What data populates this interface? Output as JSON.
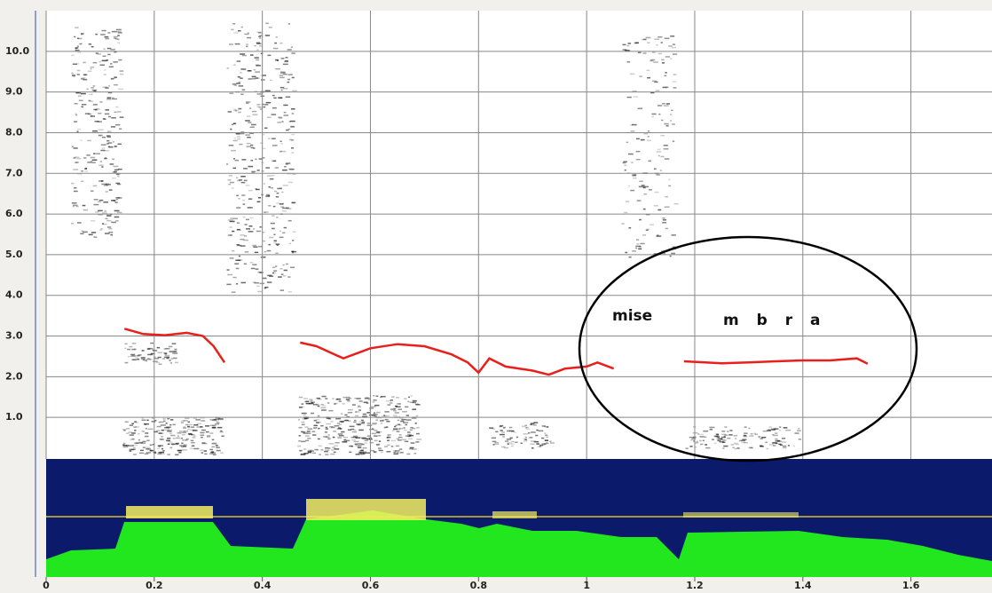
{
  "chart_data": {
    "type": "line",
    "x": [
      0.145,
      0.18,
      0.22,
      0.26,
      0.29,
      0.31,
      0.33,
      null,
      0.47,
      0.5,
      0.55,
      0.6,
      0.65,
      0.7,
      0.75,
      0.78,
      0.8,
      0.82,
      0.85,
      0.9,
      0.93,
      0.96,
      1.0,
      1.02,
      1.05,
      null,
      1.18,
      1.25,
      1.3,
      1.35,
      1.4,
      1.45,
      1.5,
      1.52
    ],
    "series": [
      {
        "color": "#e8201c",
        "values": [
          3.18,
          3.05,
          3.02,
          3.08,
          3.0,
          2.75,
          2.35,
          null,
          2.84,
          2.75,
          2.45,
          2.7,
          2.8,
          2.75,
          2.55,
          2.35,
          2.1,
          2.45,
          2.25,
          2.15,
          2.05,
          2.2,
          2.25,
          2.35,
          2.2,
          null,
          2.38,
          2.33,
          2.35,
          2.38,
          2.4,
          2.4,
          2.45,
          2.32
        ]
      }
    ],
    "xlim": [
      0,
      1.75
    ],
    "xticks": [
      0,
      0.2,
      0.4,
      0.6,
      0.8,
      1,
      1.2,
      1.4,
      1.6
    ],
    "ylim": [
      0,
      11
    ],
    "yticks": [
      {
        "value": 1,
        "label": "1.0"
      },
      {
        "value": 2,
        "label": "2.0"
      },
      {
        "value": 3,
        "label": "3.0"
      },
      {
        "value": 4,
        "label": "4.0"
      },
      {
        "value": 5,
        "label": "5.0"
      },
      {
        "value": 6,
        "label": "6.0"
      },
      {
        "value": 7,
        "label": "7.0"
      },
      {
        "value": 8,
        "label": "8.0"
      },
      {
        "value": 9,
        "label": "9.0"
      },
      {
        "value": 10,
        "label": "10.0"
      }
    ],
    "grid": true,
    "annotations": [
      "mise",
      "m b r a"
    ]
  }
}
